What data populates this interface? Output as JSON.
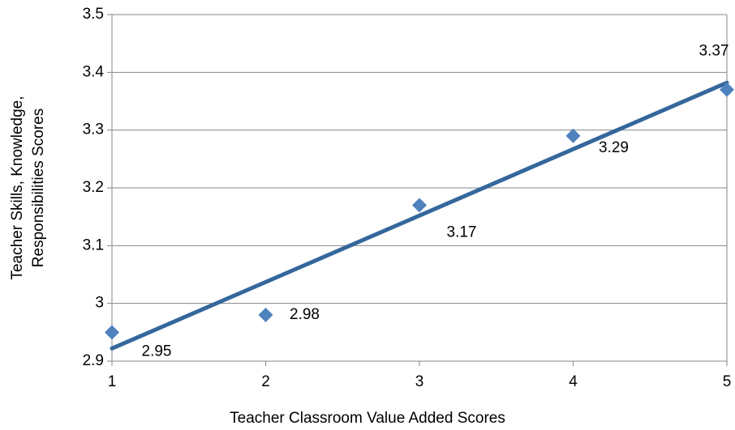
{
  "chart_data": {
    "type": "scatter",
    "xlabel": "Teacher Classroom Value Added Scores",
    "ylabel": [
      "Teacher Skills, Knowledge,",
      "Responsibilities Scores"
    ],
    "x": [
      1,
      2,
      3,
      4,
      5
    ],
    "series": [
      {
        "color": "#4f81bd",
        "values": [
          2.95,
          2.98,
          3.17,
          3.29,
          3.37
        ]
      }
    ],
    "trendline": {
      "type": "linear",
      "color": "#34679c"
    },
    "xlim": [
      1,
      5
    ],
    "xticks": [
      1,
      2,
      3,
      4,
      5
    ],
    "ylim": [
      2.9,
      3.5
    ],
    "yticks": [
      2.9,
      3,
      3.1,
      3.2,
      3.3,
      3.4,
      3.5
    ],
    "grid": true
  }
}
